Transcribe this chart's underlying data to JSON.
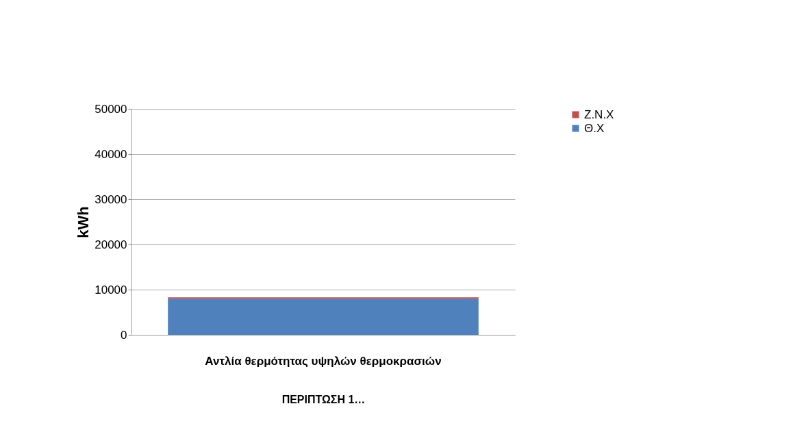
{
  "chart_data": {
    "type": "bar",
    "stacked": true,
    "xlabel": "ΠΕΡΙΠΤΩΣΗ 1…",
    "ylabel": "kWh",
    "categories": [
      "Αντλία θερμότητας υψηλών θερμοκρασιών"
    ],
    "series": [
      {
        "name": "Θ.Χ",
        "color": "#4f81bd",
        "values": [
          8000
        ]
      },
      {
        "name": "Z.N.X",
        "color": "#c0504d",
        "values": [
          300
        ]
      }
    ],
    "ylim": [
      0,
      50000
    ],
    "yticks": [
      0,
      10000,
      20000,
      30000,
      40000,
      50000
    ],
    "grid": true,
    "legend": "right"
  }
}
